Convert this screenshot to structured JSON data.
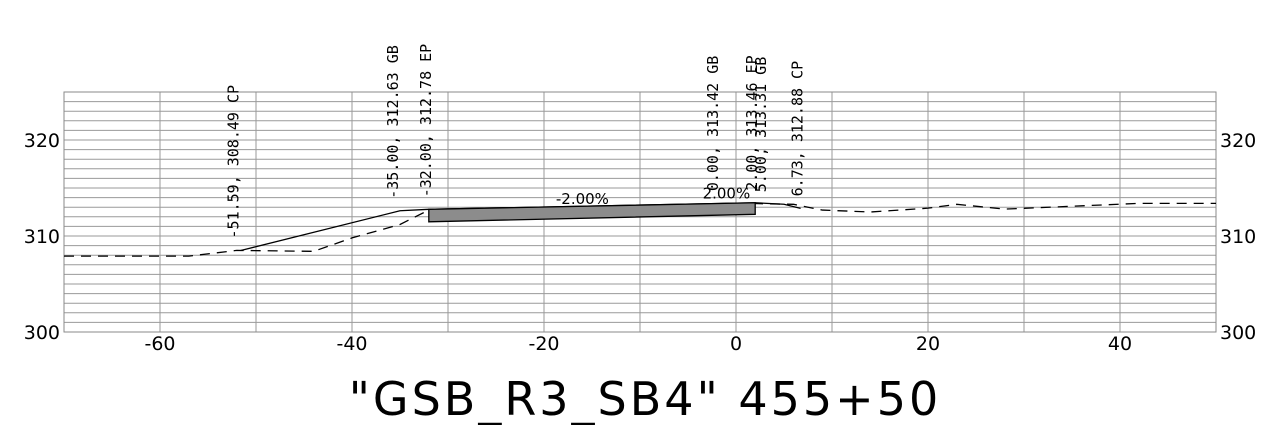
{
  "section": {
    "title": "\"GSB_R3_SB4\"  455+50",
    "x_ticks": [
      "-60",
      "-40",
      "-20",
      "0",
      "20",
      "40"
    ],
    "y_ticks": [
      "320",
      "310",
      "300"
    ],
    "point_labels": [
      {
        "text": "-51.59, 308.49 CP"
      },
      {
        "text": "-35.00, 312.63 GB"
      },
      {
        "text": "-32.00, 312.78 EP"
      },
      {
        "text": "0.00, 313.42 GB"
      },
      {
        "text": "2.00, 313.46 EP"
      },
      {
        "text": "5.00, 313.31 GB"
      },
      {
        "text": "6.73, 312.88 CP"
      }
    ],
    "slope_labels": [
      "-2.00%",
      "2.00%"
    ]
  },
  "chart_data": {
    "type": "line",
    "title": "\"GSB_R3_SB4\" 455+50",
    "xlim": [
      -70,
      50
    ],
    "ylim": [
      300,
      325
    ],
    "grid": true,
    "series": [
      {
        "x": [
          -51.59,
          -35.0,
          -32.0,
          0.0,
          2.0,
          5.0,
          6.73
        ],
        "y": [
          308.49,
          312.63,
          312.78,
          313.42,
          313.46,
          313.31,
          312.88
        ],
        "style": "solid"
      },
      {
        "x": [
          -70,
          -57,
          -52,
          -44,
          -40,
          -35,
          -32,
          -20,
          -8,
          0,
          6,
          9,
          14,
          20,
          23,
          28,
          35,
          42,
          50
        ],
        "y": [
          307.9,
          307.9,
          308.5,
          308.4,
          309.8,
          311.2,
          312.7,
          312.9,
          313.2,
          313.42,
          313.3,
          312.7,
          312.5,
          312.9,
          313.3,
          312.8,
          313.1,
          313.4,
          313.4
        ],
        "style": "dashed"
      }
    ],
    "pavement": {
      "x": [
        -32.0,
        2.0
      ],
      "top": [
        312.78,
        313.46
      ],
      "bottom": [
        311.48,
        312.26
      ]
    }
  }
}
